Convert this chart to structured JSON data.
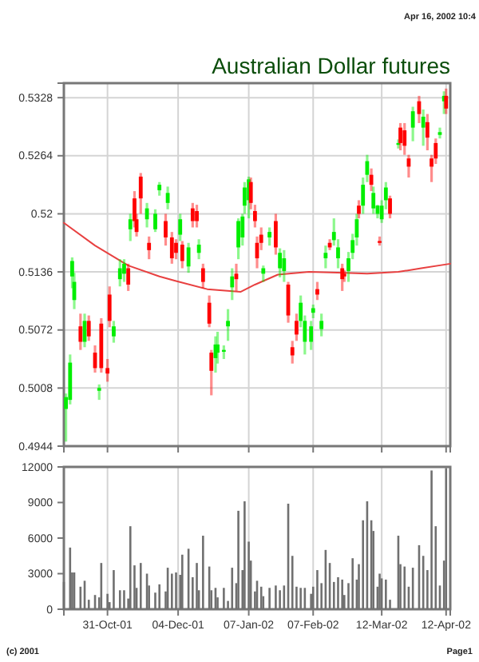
{
  "chart_data": [
    {
      "type": "candlestick",
      "title": "Australian Dollar futures",
      "annotations": [
        "Apr 16, 2002 10:4"
      ],
      "x": [
        "2001-10-11",
        "2001-10-13",
        "2001-10-14",
        "2001-10-15",
        "2001-10-18",
        "2001-10-20",
        "2001-10-22",
        "2001-10-25",
        "2001-10-27",
        "2001-10-28",
        "2001-10-31",
        "2001-11-01",
        "2001-11-03",
        "2001-11-06",
        "2001-11-08",
        "2001-11-10",
        "2001-11-11",
        "2001-11-13",
        "2001-11-14",
        "2001-11-16",
        "2001-11-19",
        "2001-11-20",
        "2001-11-23",
        "2001-11-25",
        "2001-11-28",
        "2001-11-29",
        "2001-12-01",
        "2001-12-03",
        "2001-12-05",
        "2001-12-06",
        "2001-12-09",
        "2001-12-11",
        "2001-12-13",
        "2001-12-14",
        "2001-12-16",
        "2001-12-19",
        "2001-12-20",
        "2001-12-22",
        "2001-12-23",
        "2001-12-26",
        "2001-12-28",
        "2001-12-30",
        "2002-01-01",
        "2002-01-02",
        "2002-01-04",
        "2002-01-05",
        "2002-01-07",
        "2002-01-08",
        "2002-01-10",
        "2002-01-11",
        "2002-01-13",
        "2002-01-14",
        "2002-01-17",
        "2002-01-20",
        "2002-01-22",
        "2002-01-24",
        "2002-01-26",
        "2002-01-28",
        "2002-01-30",
        "2002-02-01",
        "2002-02-03",
        "2002-02-06",
        "2002-02-07",
        "2002-02-09",
        "2002-02-11",
        "2002-02-13",
        "2002-02-15",
        "2002-02-17",
        "2002-02-19",
        "2002-02-21",
        "2002-02-22",
        "2002-02-24",
        "2002-02-26",
        "2002-02-28",
        "2002-03-01",
        "2002-03-03",
        "2002-03-05",
        "2002-03-07",
        "2002-03-08",
        "2002-03-10",
        "2002-03-11",
        "2002-03-12",
        "2002-03-14",
        "2002-03-16",
        "2002-03-20",
        "2002-03-21",
        "2002-03-23",
        "2002-03-25",
        "2002-03-27",
        "2002-03-30",
        "2002-04-01",
        "2002-04-03",
        "2002-04-05",
        "2002-04-07",
        "2002-04-09",
        "2002-04-11",
        "2002-04-12"
      ],
      "ohlc": [
        [
          0.4985,
          0.5002,
          0.4949,
          0.4998
        ],
        [
          0.4995,
          0.5045,
          0.499,
          0.5036
        ],
        [
          0.5131,
          0.5152,
          0.5118,
          0.5148
        ],
        [
          0.5105,
          0.5135,
          0.5095,
          0.5125
        ],
        [
          0.5076,
          0.509,
          0.505,
          0.5059
        ],
        [
          0.5059,
          0.509,
          0.5053,
          0.5082
        ],
        [
          0.5082,
          0.5088,
          0.506,
          0.5065
        ],
        [
          0.5047,
          0.5055,
          0.5025,
          0.503
        ],
        [
          0.5005,
          0.5012,
          0.4995,
          0.5008
        ],
        [
          0.5079,
          0.5085,
          0.5025,
          0.503
        ],
        [
          0.503,
          0.504,
          0.5015,
          0.5024
        ],
        [
          0.5111,
          0.512,
          0.5075,
          0.5082
        ],
        [
          0.5065,
          0.5082,
          0.5058,
          0.5076
        ],
        [
          0.5128,
          0.515,
          0.512,
          0.514
        ],
        [
          0.5134,
          0.515,
          0.5125,
          0.5145
        ],
        [
          0.514,
          0.5145,
          0.5115,
          0.5122
        ],
        [
          0.5183,
          0.52,
          0.517,
          0.5194
        ],
        [
          0.5217,
          0.5225,
          0.5185,
          0.5192
        ],
        [
          0.5194,
          0.52,
          0.5175,
          0.518
        ],
        [
          0.5241,
          0.5245,
          0.52,
          0.5217
        ],
        [
          0.5194,
          0.5212,
          0.5185,
          0.5206
        ],
        [
          0.5168,
          0.5175,
          0.515,
          0.516
        ],
        [
          0.5183,
          0.5205,
          0.518,
          0.52
        ],
        [
          0.5226,
          0.5235,
          0.522,
          0.5232
        ],
        [
          0.5192,
          0.52,
          0.5165,
          0.5174
        ],
        [
          0.5212,
          0.523,
          0.5205,
          0.5223
        ],
        [
          0.5174,
          0.518,
          0.5145,
          0.5151
        ],
        [
          0.5168,
          0.5172,
          0.515,
          0.5157
        ],
        [
          0.5177,
          0.52,
          0.517,
          0.5194
        ],
        [
          0.5166,
          0.517,
          0.514,
          0.5148
        ],
        [
          0.5142,
          0.5168,
          0.5135,
          0.5163
        ],
        [
          0.5206,
          0.5212,
          0.5185,
          0.5192
        ],
        [
          0.5203,
          0.521,
          0.5185,
          0.5192
        ],
        [
          0.5157,
          0.5172,
          0.515,
          0.5166
        ],
        [
          0.514,
          0.5145,
          0.5118,
          0.5125
        ],
        [
          0.5102,
          0.511,
          0.5075,
          0.5079
        ],
        [
          0.5047,
          0.505,
          0.5,
          0.5027
        ],
        [
          0.5041,
          0.5065,
          0.5025,
          0.5056
        ],
        [
          0.5047,
          0.507,
          0.5035,
          0.5056
        ],
        [
          0.5048,
          0.5055,
          0.504,
          0.505
        ],
        [
          0.5076,
          0.5095,
          0.506,
          0.5082
        ],
        [
          0.5119,
          0.514,
          0.5105,
          0.5131
        ],
        [
          0.5134,
          0.5145,
          0.5115,
          0.5128
        ],
        [
          0.5163,
          0.5195,
          0.515,
          0.5192
        ],
        [
          0.5174,
          0.52,
          0.5165,
          0.5197
        ],
        [
          0.5209,
          0.5235,
          0.52,
          0.5229
        ],
        [
          0.5215,
          0.5241,
          0.5195,
          0.5238
        ],
        [
          0.5235,
          0.524,
          0.5205,
          0.5212
        ],
        [
          0.5203,
          0.521,
          0.5185,
          0.5192
        ],
        [
          0.5168,
          0.5175,
          0.514,
          0.5151
        ],
        [
          0.5177,
          0.5185,
          0.516,
          0.5168
        ],
        [
          0.5134,
          0.5143,
          0.5125,
          0.514
        ],
        [
          0.5174,
          0.5185,
          0.5165,
          0.518
        ],
        [
          0.5192,
          0.52,
          0.5155,
          0.5163
        ],
        [
          0.514,
          0.5162,
          0.513,
          0.5157
        ],
        [
          0.5137,
          0.516,
          0.5125,
          0.5151
        ],
        [
          0.5122,
          0.5125,
          0.508,
          0.5088
        ],
        [
          0.5053,
          0.506,
          0.5035,
          0.5044
        ],
        [
          0.5082,
          0.509,
          0.506,
          0.5067
        ],
        [
          0.5082,
          0.511,
          0.5075,
          0.5102
        ],
        [
          0.5059,
          0.5088,
          0.5045,
          0.5082
        ],
        [
          0.5059,
          0.5082,
          0.505,
          0.5076
        ],
        [
          0.5091,
          0.51,
          0.5085,
          0.5096
        ],
        [
          0.5117,
          0.5125,
          0.5105,
          0.5111
        ],
        [
          0.5073,
          0.509,
          0.5065,
          0.5082
        ],
        [
          0.5151,
          0.5165,
          0.514,
          0.5157
        ],
        [
          0.5168,
          0.5172,
          0.516,
          0.5163
        ],
        [
          0.5171,
          0.5195,
          0.5165,
          0.518
        ],
        [
          0.5151,
          0.5172,
          0.514,
          0.5163
        ],
        [
          0.514,
          0.5145,
          0.5115,
          0.5128
        ],
        [
          0.5134,
          0.5138,
          0.5125,
          0.5131
        ],
        [
          0.5137,
          0.5158,
          0.5125,
          0.5151
        ],
        [
          0.5157,
          0.5178,
          0.515,
          0.5171
        ],
        [
          0.5174,
          0.52,
          0.5165,
          0.5194
        ],
        [
          0.5209,
          0.5215,
          0.5195,
          0.52
        ],
        [
          0.5209,
          0.524,
          0.52,
          0.5232
        ],
        [
          0.5243,
          0.5265,
          0.5235,
          0.5258
        ],
        [
          0.5243,
          0.525,
          0.5225,
          0.5232
        ],
        [
          0.5206,
          0.523,
          0.52,
          0.5223
        ],
        [
          0.52,
          0.521,
          0.5195,
          0.5209
        ],
        [
          0.517,
          0.5175,
          0.5165,
          0.5168
        ],
        [
          0.5194,
          0.5215,
          0.519,
          0.5209
        ],
        [
          0.5215,
          0.5235,
          0.5205,
          0.5229
        ],
        [
          0.5217,
          0.522,
          0.5195,
          0.52
        ],
        [
          0.5276,
          0.5282,
          0.5272,
          0.5278
        ],
        [
          0.5295,
          0.53,
          0.527,
          0.5278
        ],
        [
          0.5292,
          0.53,
          0.5265,
          0.5275
        ],
        [
          0.5261,
          0.5265,
          0.524,
          0.5252
        ],
        [
          0.5295,
          0.5318,
          0.528,
          0.5313
        ],
        [
          0.5324,
          0.533,
          0.53,
          0.531
        ],
        [
          0.5295,
          0.5315,
          0.5275,
          0.5307
        ],
        [
          0.5301,
          0.531,
          0.527,
          0.5284
        ],
        [
          0.5261,
          0.5265,
          0.5235,
          0.5252
        ],
        [
          0.5278,
          0.5283,
          0.5255,
          0.5261
        ],
        [
          0.5287,
          0.5295,
          0.5283,
          0.529
        ],
        [
          0.5324,
          0.5335,
          0.531,
          0.533
        ],
        [
          0.533,
          0.5338,
          0.531,
          0.5316
        ]
      ],
      "colors": [
        "#00ee00",
        "#00ee00",
        "#00ee00",
        "#00ee00",
        "#ff0000",
        "#00ee00",
        "#ff0000",
        "#ff0000",
        "#00ee00",
        "#ff0000",
        "#ff0000",
        "#ff0000",
        "#00ee00",
        "#00ee00",
        "#00ee00",
        "#ff0000",
        "#00ee00",
        "#ff0000",
        "#ff0000",
        "#ff0000",
        "#00ee00",
        "#ff0000",
        "#00ee00",
        "#00ee00",
        "#ff0000",
        "#00ee00",
        "#ff0000",
        "#ff0000",
        "#00ee00",
        "#ff0000",
        "#00ee00",
        "#ff0000",
        "#ff0000",
        "#00ee00",
        "#ff0000",
        "#ff0000",
        "#ff0000",
        "#00ee00",
        "#00ee00",
        "#00ee00",
        "#00ee00",
        "#00ee00",
        "#ff0000",
        "#00ee00",
        "#00ee00",
        "#00ee00",
        "#00ee00",
        "#ff0000",
        "#ff0000",
        "#ff0000",
        "#ff0000",
        "#00ee00",
        "#00ee00",
        "#ff0000",
        "#00ee00",
        "#00ee00",
        "#ff0000",
        "#ff0000",
        "#ff0000",
        "#00ee00",
        "#00ee00",
        "#00ee00",
        "#00ee00",
        "#ff0000",
        "#00ee00",
        "#00ee00",
        "#ff0000",
        "#00ee00",
        "#00ee00",
        "#ff0000",
        "#ff0000",
        "#00ee00",
        "#00ee00",
        "#00ee00",
        "#ff0000",
        "#00ee00",
        "#00ee00",
        "#ff0000",
        "#00ee00",
        "#00ee00",
        "#ff0000",
        "#00ee00",
        "#00ee00",
        "#ff0000",
        "#00ee00",
        "#ff0000",
        "#ff0000",
        "#ff0000",
        "#00ee00",
        "#ff0000",
        "#00ee00",
        "#ff0000",
        "#ff0000",
        "#ff0000",
        "#00ee00",
        "#00ee00",
        "#ff0000"
      ],
      "series": [
        {
          "type": "line",
          "color": "#e84040",
          "x": [
            "2001-10-10",
            "2001-10-25",
            "2001-11-10",
            "2001-11-25",
            "2001-12-03",
            "2001-12-18",
            "2002-01-03",
            "2002-01-10",
            "2002-01-21",
            "2002-02-05",
            "2002-02-22",
            "2002-03-05",
            "2002-03-20",
            "2002-03-31",
            "2002-04-14"
          ],
          "values": [
            0.519,
            0.5165,
            0.5143,
            0.5131,
            0.5126,
            0.5117,
            0.5114,
            0.5122,
            0.5133,
            0.5136,
            0.5135,
            0.5134,
            0.5136,
            0.514,
            0.5145
          ]
        }
      ],
      "xlim": [
        "2001-10-10",
        "2002-04-14"
      ],
      "xticks": [
        {
          "value": "2001-10-31",
          "label": null
        },
        {
          "value": "2001-12-04",
          "label": null
        },
        {
          "value": "2002-01-07",
          "label": null
        },
        {
          "value": "2002-02-07",
          "label": null
        },
        {
          "value": "2002-03-12",
          "label": null
        },
        {
          "value": "2002-04-12",
          "label": null
        }
      ],
      "ylim": [
        0.4944,
        0.5344
      ],
      "yticks": [
        0.4944,
        0.5008,
        0.5072,
        0.5136,
        0.52,
        0.5264,
        0.5328
      ],
      "grid": true,
      "tick_labels": "y"
    },
    {
      "type": "bar",
      "annotations": [
        "(c) 2001",
        "Page1"
      ],
      "x": [
        "2001-10-10",
        "2001-10-13",
        "2001-10-14",
        "2001-10-15",
        "2001-10-18",
        "2001-10-20",
        "2001-10-22",
        "2001-10-25",
        "2001-10-27",
        "2001-10-28",
        "2001-10-31",
        "2001-11-01",
        "2001-11-03",
        "2001-11-06",
        "2001-11-08",
        "2001-11-10",
        "2001-11-11",
        "2001-11-13",
        "2001-11-14",
        "2001-11-16",
        "2001-11-19",
        "2001-11-20",
        "2001-11-23",
        "2001-11-25",
        "2001-11-28",
        "2001-11-29",
        "2001-12-01",
        "2001-12-03",
        "2001-12-05",
        "2001-12-06",
        "2001-12-09",
        "2001-12-11",
        "2001-12-13",
        "2001-12-14",
        "2001-12-16",
        "2001-12-19",
        "2001-12-20",
        "2001-12-22",
        "2001-12-23",
        "2001-12-26",
        "2001-12-28",
        "2001-12-30",
        "2002-01-01",
        "2002-01-02",
        "2002-01-04",
        "2002-01-05",
        "2002-01-07",
        "2002-01-08",
        "2002-01-10",
        "2002-01-11",
        "2002-01-13",
        "2002-01-14",
        "2002-01-17",
        "2002-01-20",
        "2002-01-22",
        "2002-01-24",
        "2002-01-26",
        "2002-01-28",
        "2002-01-30",
        "2002-02-01",
        "2002-02-03",
        "2002-02-06",
        "2002-02-07",
        "2002-02-09",
        "2002-02-11",
        "2002-02-13",
        "2002-02-15",
        "2002-02-17",
        "2002-02-19",
        "2002-02-21",
        "2002-02-22",
        "2002-02-24",
        "2002-02-26",
        "2002-02-28",
        "2002-03-01",
        "2002-03-03",
        "2002-03-05",
        "2002-03-07",
        "2002-03-08",
        "2002-03-10",
        "2002-03-11",
        "2002-03-12",
        "2002-03-14",
        "2002-03-16",
        "2002-03-20",
        "2002-03-21",
        "2002-03-23",
        "2002-03-25",
        "2002-03-27",
        "2002-03-30",
        "2002-04-01",
        "2002-04-03",
        "2002-04-05",
        "2002-04-07",
        "2002-04-09",
        "2002-04-11",
        "2002-04-12"
      ],
      "values": [
        2300,
        5200,
        3100,
        3100,
        1900,
        2400,
        800,
        1200,
        1000,
        3900,
        1300,
        600,
        3300,
        1600,
        1600,
        900,
        7000,
        3700,
        1800,
        3900,
        3000,
        2000,
        1400,
        2100,
        1500,
        3500,
        3000,
        3100,
        2900,
        4600,
        5100,
        2700,
        3900,
        1600,
        6200,
        3600,
        1600,
        1800,
        1000,
        1800,
        700,
        3500,
        2200,
        8300,
        3300,
        9100,
        5700,
        4100,
        1500,
        2400,
        1900,
        1100,
        1800,
        2000,
        1600,
        2000,
        8900,
        4500,
        1900,
        1800,
        1800,
        1300,
        1900,
        3300,
        2200,
        5000,
        3900,
        2300,
        2700,
        2500,
        1200,
        2200,
        4300,
        2500,
        3800,
        7500,
        9100,
        7500,
        6600,
        1900,
        3000,
        2600,
        2500,
        800,
        6200,
        3800,
        3600,
        1900,
        3500,
        5400,
        4500,
        3300,
        11700,
        7000,
        2000,
        4100,
        11900
      ],
      "color": "#707070",
      "xlim": [
        "2001-10-10",
        "2002-04-14"
      ],
      "xticks": [
        {
          "value": "2001-10-31",
          "label": "31-Oct-01"
        },
        {
          "value": "2001-12-04",
          "label": "04-Dec-01"
        },
        {
          "value": "2002-01-07",
          "label": "07-Jan-02"
        },
        {
          "value": "2002-02-07",
          "label": "07-Feb-02"
        },
        {
          "value": "2002-03-12",
          "label": "12-Mar-02"
        },
        {
          "value": "2002-04-12",
          "label": "12-Apr-02"
        }
      ],
      "ylim": [
        0,
        12000
      ],
      "yticks": [
        0,
        3000,
        6000,
        9000,
        12000
      ],
      "grid": "x"
    }
  ]
}
